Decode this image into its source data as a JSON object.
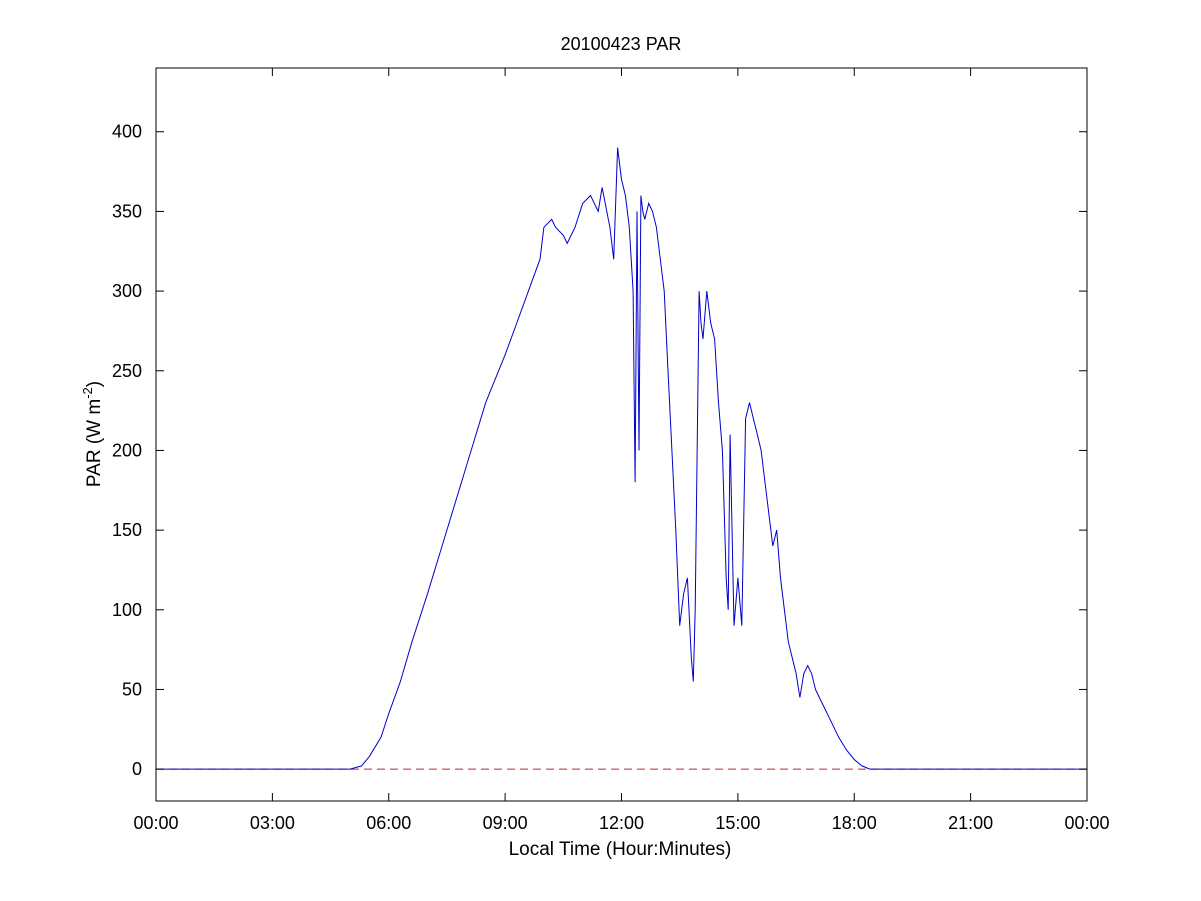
{
  "chart_data": {
    "type": "line",
    "title": "20100423 PAR",
    "xlabel": "Local Time (Hour:Minutes)",
    "ylabel": {
      "prefix": "PAR (W m",
      "superscript": "-2",
      "suffix": ")"
    },
    "xlim": [
      0,
      24
    ],
    "ylim": [
      -20,
      440
    ],
    "x_ticks": [
      0,
      3,
      6,
      9,
      12,
      15,
      18,
      21,
      24
    ],
    "x_tick_labels": [
      "00:00",
      "03:00",
      "06:00",
      "09:00",
      "12:00",
      "15:00",
      "18:00",
      "21:00",
      "00:00"
    ],
    "y_ticks": [
      0,
      50,
      100,
      150,
      200,
      250,
      300,
      350,
      400
    ],
    "y_tick_labels": [
      "0",
      "50",
      "100",
      "150",
      "200",
      "250",
      "300",
      "350",
      "400"
    ],
    "grid": false,
    "reference_line": {
      "y": 0,
      "color": "#c0282d",
      "style": "dashed"
    },
    "series": [
      {
        "color": "#0000cc",
        "x": [
          0,
          5.0,
          5.3,
          5.5,
          5.8,
          6.0,
          6.3,
          6.6,
          7.0,
          7.5,
          8.0,
          8.5,
          9.0,
          9.3,
          9.6,
          9.9,
          10.0,
          10.2,
          10.3,
          10.5,
          10.6,
          10.8,
          11.0,
          11.2,
          11.4,
          11.5,
          11.7,
          11.8,
          11.9,
          12.0,
          12.1,
          12.2,
          12.3,
          12.35,
          12.4,
          12.45,
          12.5,
          12.55,
          12.6,
          12.7,
          12.8,
          12.9,
          13.0,
          13.1,
          13.2,
          13.3,
          13.4,
          13.5,
          13.6,
          13.7,
          13.8,
          13.85,
          13.9,
          14.0,
          14.05,
          14.1,
          14.2,
          14.3,
          14.4,
          14.5,
          14.6,
          14.7,
          14.75,
          14.8,
          14.9,
          15.0,
          15.1,
          15.2,
          15.3,
          15.4,
          15.5,
          15.6,
          15.7,
          15.8,
          15.9,
          16.0,
          16.1,
          16.2,
          16.3,
          16.4,
          16.5,
          16.6,
          16.7,
          16.8,
          16.9,
          17.0,
          17.2,
          17.4,
          17.6,
          17.8,
          18.0,
          18.2,
          18.4,
          18.6,
          18.8,
          19.0,
          24
        ],
        "y": [
          0,
          0,
          2,
          8,
          20,
          35,
          55,
          80,
          110,
          150,
          190,
          230,
          260,
          280,
          300,
          320,
          340,
          345,
          340,
          335,
          330,
          340,
          355,
          360,
          350,
          365,
          340,
          320,
          390,
          370,
          360,
          340,
          300,
          180,
          350,
          200,
          360,
          350,
          345,
          355,
          350,
          340,
          320,
          300,
          250,
          200,
          150,
          90,
          110,
          120,
          70,
          55,
          100,
          300,
          280,
          270,
          300,
          280,
          270,
          230,
          200,
          120,
          100,
          210,
          90,
          120,
          90,
          220,
          230,
          220,
          210,
          200,
          180,
          160,
          140,
          150,
          120,
          100,
          80,
          70,
          60,
          45,
          60,
          65,
          60,
          50,
          40,
          30,
          20,
          12,
          6,
          2,
          0,
          0,
          0,
          0,
          0
        ]
      }
    ]
  }
}
